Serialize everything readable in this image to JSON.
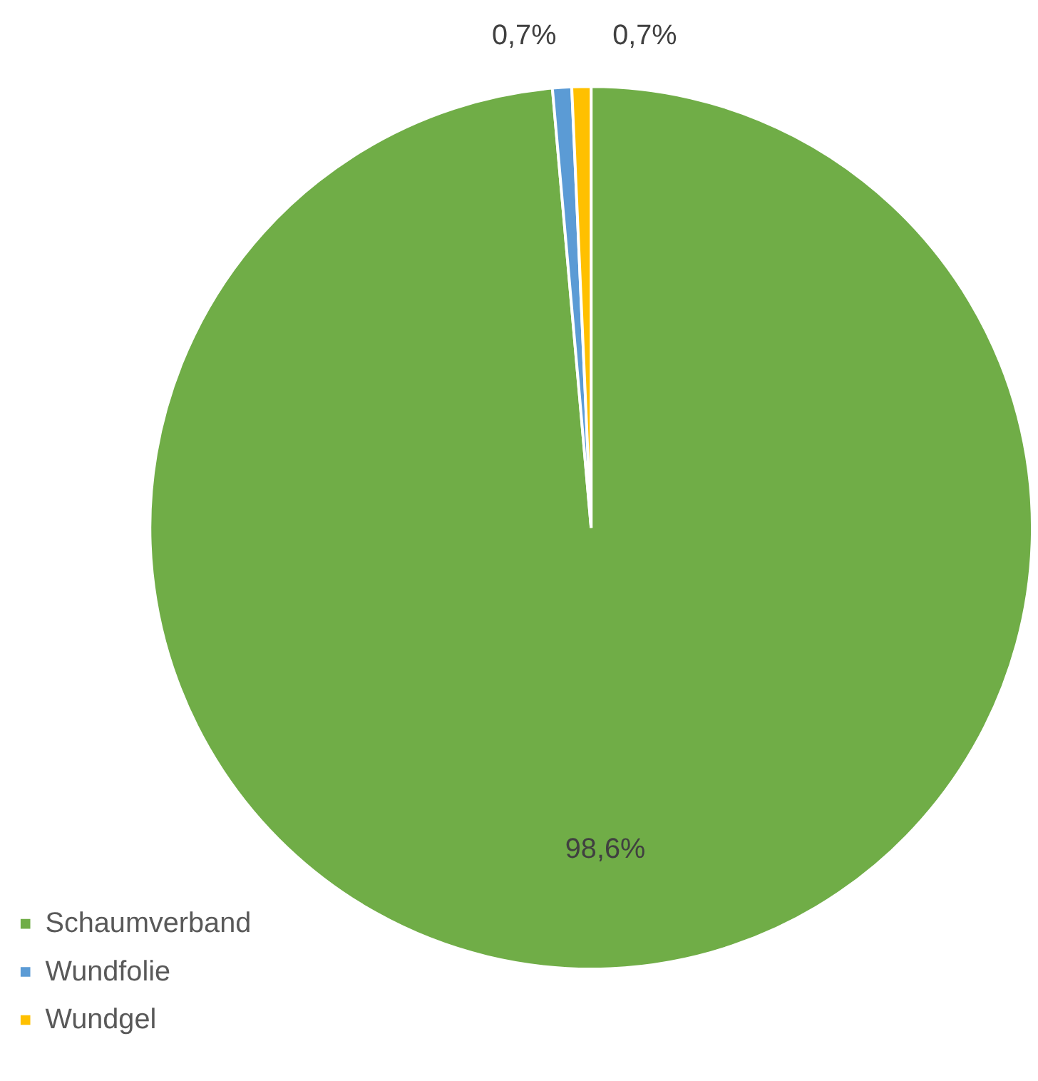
{
  "chart_data": {
    "type": "pie",
    "categories": [
      "Schaumverband",
      "Wundfolie",
      "Wundgel"
    ],
    "values": [
      98.6,
      0.7,
      0.7
    ],
    "colors": [
      "#70ad47",
      "#5b9bd5",
      "#ffc000"
    ],
    "value_labels": [
      "98,6%",
      "0,7%",
      "0,7%"
    ],
    "legend": "bottom left"
  }
}
